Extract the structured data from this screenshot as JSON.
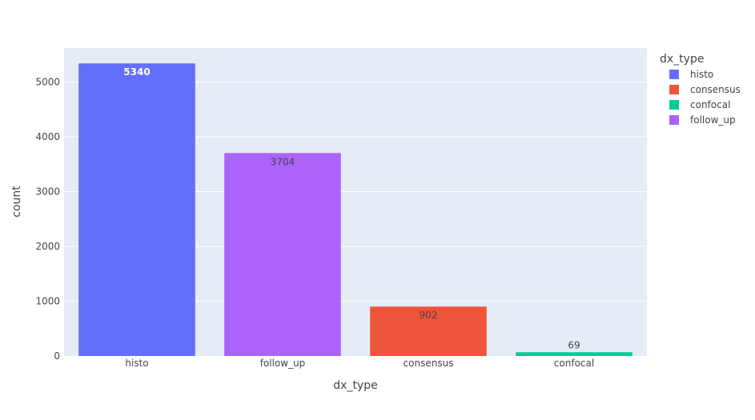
{
  "chart_data": {
    "type": "bar",
    "title": "",
    "xlabel": "dx_type",
    "ylabel": "count",
    "categories": [
      "histo",
      "follow_up",
      "consensus",
      "confocal"
    ],
    "values": [
      5340,
      3704,
      902,
      69
    ],
    "value_labels": [
      "5340",
      "3704",
      "902",
      "69"
    ],
    "bar_colors": [
      "#636efa",
      "#ab63fa",
      "#ef553b",
      "#00cc96"
    ],
    "ylim": [
      0,
      5621
    ],
    "yticks": [
      0,
      1000,
      2000,
      3000,
      4000,
      5000
    ],
    "ytick_labels": [
      "0",
      "1000",
      "2000",
      "3000",
      "4000",
      "5000"
    ],
    "grid": true,
    "legend": {
      "title": "dx_type",
      "placement": "top-right",
      "items": [
        {
          "name": "histo",
          "color": "#636efa"
        },
        {
          "name": "consensus",
          "color": "#ef553b"
        },
        {
          "name": "confocal",
          "color": "#00cc96"
        },
        {
          "name": "follow_up",
          "color": "#ab63fa"
        }
      ]
    }
  },
  "colors": {
    "plot_background": "#e5ecf6",
    "grid": "#ffffff",
    "text": "#444444"
  }
}
